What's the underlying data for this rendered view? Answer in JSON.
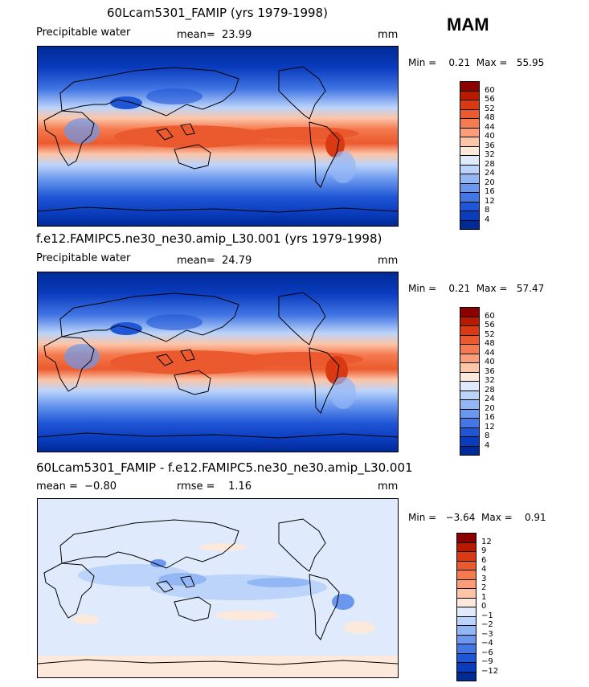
{
  "season": "MAM",
  "panels": [
    {
      "id": "p1",
      "title": "60Lcam5301_FAMIP (yrs 1979-1998)",
      "left_label": "Precipitable water",
      "mid_label": "mean=  23.99",
      "right_label": "mm",
      "minmax": "Min =    0.21  Max =   55.95",
      "colorbar": {
        "labels": [
          "60",
          "56",
          "52",
          "48",
          "44",
          "40",
          "36",
          "32",
          "28",
          "24",
          "20",
          "16",
          "12",
          "8",
          "4"
        ],
        "colors": [
          "#8c0000",
          "#b81a00",
          "#d93a14",
          "#eb5a2e",
          "#f57a4f",
          "#fa9d78",
          "#fcc5a8",
          "#fde8dc",
          "#dfeafc",
          "#bcd4fa",
          "#93b7f5",
          "#6b98ee",
          "#4377e4",
          "#1f56d6",
          "#0a3cbe",
          "#002a96"
        ]
      }
    },
    {
      "id": "p2",
      "title": "f.e12.FAMIPC5.ne30_ne30.amip_L30.001 (yrs 1979-1998)",
      "left_label": "Precipitable water",
      "mid_label": "mean=  24.79",
      "right_label": "mm",
      "minmax": "Min =    0.21  Max =   57.47",
      "colorbar": {
        "labels": [
          "60",
          "56",
          "52",
          "48",
          "44",
          "40",
          "36",
          "32",
          "28",
          "24",
          "20",
          "16",
          "12",
          "8",
          "4"
        ],
        "colors": [
          "#8c0000",
          "#b81a00",
          "#d93a14",
          "#eb5a2e",
          "#f57a4f",
          "#fa9d78",
          "#fcc5a8",
          "#fde8dc",
          "#dfeafc",
          "#bcd4fa",
          "#93b7f5",
          "#6b98ee",
          "#4377e4",
          "#1f56d6",
          "#0a3cbe",
          "#002a96"
        ]
      }
    },
    {
      "id": "p3",
      "title": "60Lcam5301_FAMIP - f.e12.FAMIPC5.ne30_ne30.amip_L30.001",
      "left_label": "mean =  −0.80",
      "mid_label": "rmse =    1.16",
      "right_label": "mm",
      "minmax": "Min =   −3.64  Max =    0.91",
      "colorbar": {
        "labels": [
          "12",
          "9",
          "6",
          "4",
          "3",
          "2",
          "1",
          "0",
          "−1",
          "−2",
          "−3",
          "−4",
          "−6",
          "−9",
          "−12"
        ],
        "colors": [
          "#8c0000",
          "#b81a00",
          "#d93a14",
          "#eb5a2e",
          "#f57a4f",
          "#fa9d78",
          "#fcc5a8",
          "#fde8dc",
          "#dfeafc",
          "#bcd4fa",
          "#93b7f5",
          "#6b98ee",
          "#4377e4",
          "#1f56d6",
          "#0a3cbe",
          "#002a96"
        ]
      }
    }
  ]
}
